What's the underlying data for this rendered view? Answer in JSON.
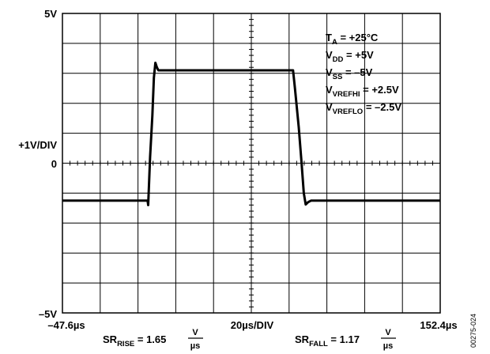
{
  "chart_data": {
    "type": "line",
    "title": "",
    "x_start_label": "–47.6µs",
    "x_end_label": "152.4µs",
    "x_div_label": "20µs/DIV",
    "y_top_label": "5V",
    "y_zero_label": "0",
    "y_bottom_label": "–5V",
    "y_div_label": "+1V/DIV",
    "xlim": [
      -47.6,
      152.4
    ],
    "ylim": [
      -5,
      5
    ],
    "grid": true,
    "x_divisions": 10,
    "y_divisions": 10,
    "series": [
      {
        "name": "",
        "color": "#000000",
        "x": [
          -47.6,
          -2.5,
          -2.2,
          -1.2,
          0.0,
          0.8,
          1.6,
          2.4,
          3.2,
          5.0,
          20.0,
          40.0,
          60.0,
          70.0,
          74.5,
          75.5,
          77.5,
          79.0,
          80.2,
          81.2,
          82.5,
          84.0,
          100.0,
          120.0,
          152.4
        ],
        "y": [
          -1.25,
          -1.25,
          -1.4,
          0.2,
          1.6,
          2.85,
          3.35,
          3.2,
          3.1,
          3.1,
          3.1,
          3.1,
          3.1,
          3.1,
          3.1,
          2.5,
          1.2,
          0.0,
          -1.0,
          -1.38,
          -1.3,
          -1.25,
          -1.25,
          -1.25,
          -1.25
        ]
      }
    ],
    "annotations": {
      "ta": {
        "main": "T",
        "sub": "A",
        "rest": " = +25°C"
      },
      "vdd": {
        "main": "V",
        "sub": "DD",
        "rest": " = +5V"
      },
      "vss": {
        "main": "V",
        "sub": "SS",
        "rest": " = –5V"
      },
      "vrefhi": {
        "main": "V",
        "sub": "VREFHI",
        "rest": " = +2.5V"
      },
      "vreflo": {
        "main": "V",
        "sub": "VREFLO",
        "rest": " = –2.5V"
      }
    },
    "slew": {
      "rise": {
        "main": "SR",
        "sub": "RISE",
        "eq": " = 1.65",
        "num": "V",
        "den": "µs"
      },
      "fall": {
        "main": "SR",
        "sub": "FALL",
        "eq": " = 1.17",
        "num": "V",
        "den": "µs"
      }
    },
    "figure_code": "00275-024"
  }
}
